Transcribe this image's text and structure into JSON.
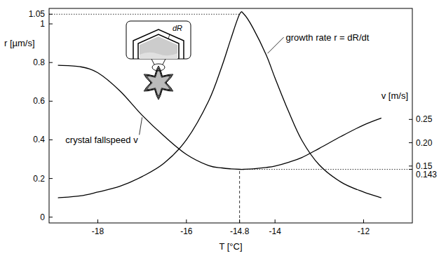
{
  "chart_data": {
    "type": "line",
    "x_label": "T [°C]",
    "y_label": "r [µm/s]",
    "y2_label": "v [m/s]",
    "x": [
      -18.9,
      -18.4,
      -18,
      -17.5,
      -17,
      -16.5,
      -16,
      -15.5,
      -15.2,
      -15,
      -14.8,
      -14.7,
      -14.5,
      -14.2,
      -14,
      -13.7,
      -13.4,
      -13,
      -12.5,
      -12,
      -11.6
    ],
    "series": [
      {
        "name": "growth rate r = dR/dt",
        "color": "#000000",
        "axis": "y",
        "values": [
          0.1,
          0.11,
          0.13,
          0.16,
          0.21,
          0.28,
          0.4,
          0.6,
          0.78,
          0.92,
          1.05,
          1.05,
          0.98,
          0.84,
          0.72,
          0.55,
          0.4,
          0.27,
          0.18,
          0.13,
          0.1
        ]
      },
      {
        "name": "crystal fallspeed v",
        "color": "#000000",
        "axis": "y2",
        "values": [
          0.366,
          0.363,
          0.35,
          0.311,
          0.259,
          0.214,
          0.175,
          0.151,
          0.146,
          0.144,
          0.143,
          0.143,
          0.144,
          0.147,
          0.15,
          0.158,
          0.168,
          0.188,
          0.214,
          0.238,
          0.253
        ]
      }
    ],
    "xlim": [
      -19.1,
      -10.9
    ],
    "xticks": [
      -18,
      -16,
      -14.8,
      -14,
      -12
    ],
    "ylim": [
      -0.03,
      1.08
    ],
    "yticks": [
      0,
      0.2,
      0.4,
      0.6,
      0.8,
      1,
      1.05
    ],
    "y2lim": [
      0.028,
      0.488
    ],
    "y2ticks": [
      0.143,
      0.15,
      {
        "value": 0.2,
        "label": "0.20"
      },
      0.25
    ],
    "reference_lines": [
      {
        "x": -14.8,
        "y": 1.05
      },
      {
        "x": -14.8,
        "y": 0.143,
        "axis": "y2"
      }
    ],
    "inset": {
      "label": "dR"
    },
    "grid": false
  }
}
